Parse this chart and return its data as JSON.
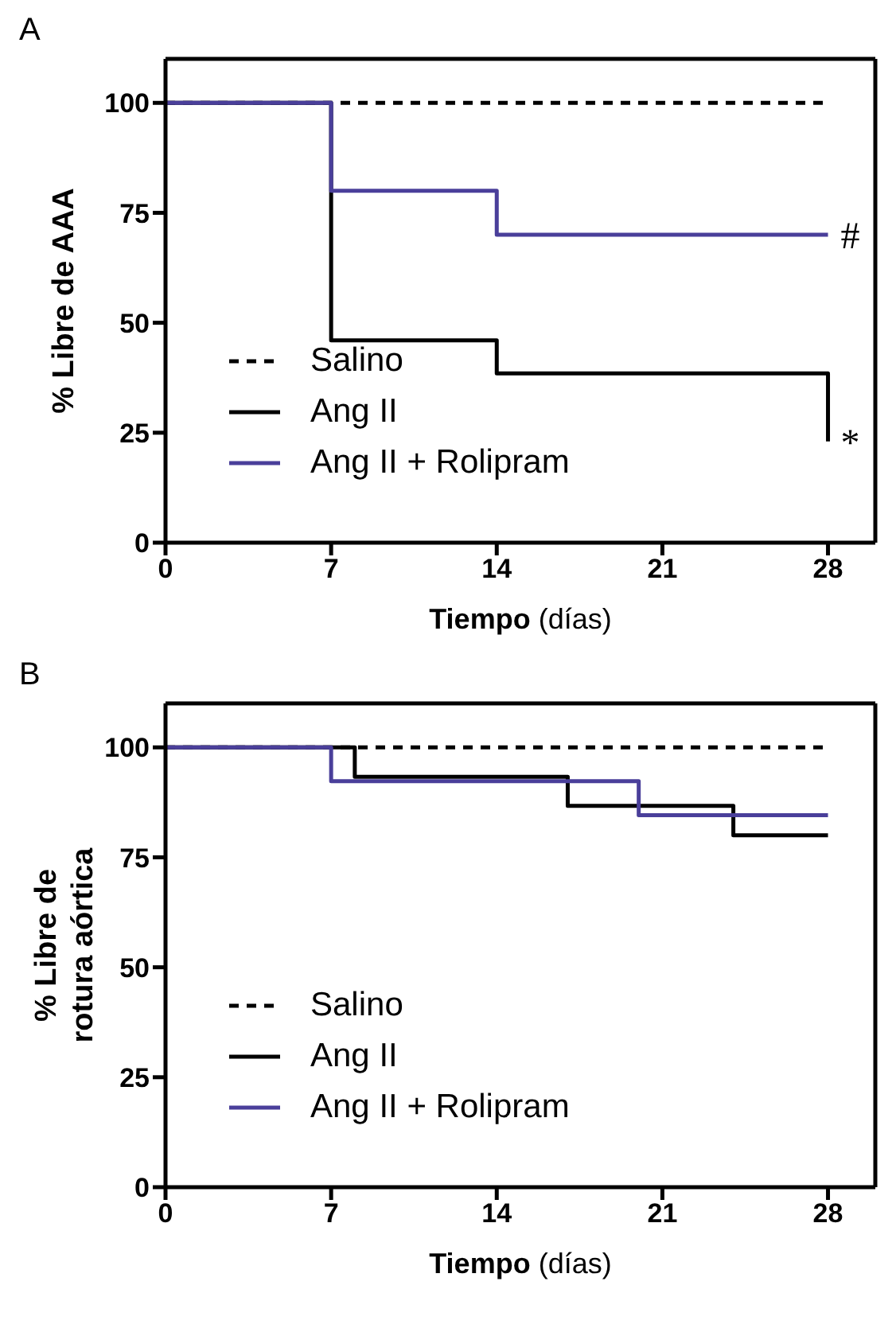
{
  "chart_data": [
    {
      "type": "step",
      "title": "A",
      "xlabel": "Tiempo (días)",
      "ylabel": "% Libre de AAA",
      "xlim": [
        0,
        30
      ],
      "xticks": [
        0,
        7,
        14,
        21,
        28
      ],
      "ylim": [
        0,
        110
      ],
      "yticks": [
        0,
        25,
        50,
        75,
        100
      ],
      "legend": "bottom left",
      "marker": "none",
      "series": [
        {
          "name": "Salino",
          "color": "#000000",
          "line_style": "dashed",
          "x": [
            0,
            28
          ],
          "values": [
            100,
            100
          ]
        },
        {
          "name": "Ang II",
          "color": "#000000",
          "line_style": "solid",
          "x": [
            0,
            7,
            14,
            28,
            28
          ],
          "values": [
            100,
            46,
            38.5,
            38.5,
            23
          ]
        },
        {
          "name": "Ang II + Rolipram",
          "color": "#4a3f9a",
          "line_style": "solid",
          "x": [
            0,
            7,
            14,
            28
          ],
          "values": [
            100,
            80,
            70,
            70
          ]
        }
      ],
      "annotations": [
        {
          "text": "#",
          "x": 28,
          "y": 70
        },
        {
          "text": "*",
          "x": 28,
          "y": 23
        }
      ]
    },
    {
      "type": "step",
      "title": "B",
      "xlabel": "Tiempo (días)",
      "ylabel": "% Libre de rotura aórtica",
      "xlim": [
        0,
        30
      ],
      "xticks": [
        0,
        7,
        14,
        21,
        28
      ],
      "ylim": [
        0,
        110
      ],
      "yticks": [
        0,
        25,
        50,
        75,
        100
      ],
      "legend": "bottom left",
      "marker": "none",
      "series": [
        {
          "name": "Salino",
          "color": "#000000",
          "line_style": "dashed",
          "x": [
            0,
            28
          ],
          "values": [
            100,
            100
          ]
        },
        {
          "name": "Ang II",
          "color": "#000000",
          "line_style": "solid",
          "x": [
            0,
            8,
            17,
            24,
            28
          ],
          "values": [
            100,
            93.3,
            86.7,
            80,
            80
          ]
        },
        {
          "name": "Ang II + Rolipram",
          "color": "#4a3f9a",
          "line_style": "solid",
          "x": [
            0,
            7,
            20,
            28
          ],
          "values": [
            100,
            92.3,
            84.6,
            84.6
          ]
        }
      ]
    }
  ]
}
